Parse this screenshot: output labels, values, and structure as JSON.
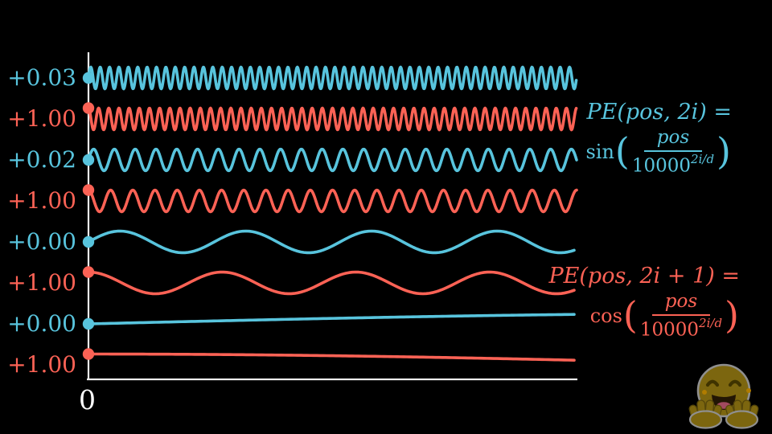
{
  "colors": {
    "blue": "#58C4DD",
    "red": "#FC6255",
    "axis": "#ECECEC",
    "origin_label": "#FFFFFF"
  },
  "axis": {
    "origin_label": "0"
  },
  "chart_data": {
    "type": "line",
    "title": "",
    "description": "Sinusoidal positional encoding components plotted against position pos, one row per encoding dimension; sine dimensions in blue, cosine dimensions in red. Dots mark the value at pos = 0 on the vertical axis.",
    "xlabel": "",
    "ylabel": "",
    "x_axis": {
      "origin_tick_label": "0",
      "ticks": [
        "0"
      ]
    },
    "grid": false,
    "legend_position": "none",
    "y_amplitude": 1,
    "series": [
      {
        "value_label": "+0.03",
        "function": "sin",
        "color_role": "blue",
        "cycles_across_width": 52,
        "start_value": 0
      },
      {
        "value_label": "+1.00",
        "function": "cos",
        "color_role": "red",
        "cycles_across_width": 48,
        "start_value": 1
      },
      {
        "value_label": "+0.02",
        "function": "sin",
        "color_role": "blue",
        "cycles_across_width": 23.5,
        "start_value": 0
      },
      {
        "value_label": "+1.00",
        "function": "cos",
        "color_role": "red",
        "cycles_across_width": 22,
        "start_value": 1
      },
      {
        "value_label": "+0.00",
        "function": "sin",
        "color_role": "blue",
        "cycles_across_width": 3.88,
        "start_value": 0
      },
      {
        "value_label": "+1.00",
        "function": "cos",
        "color_role": "red",
        "cycles_across_width": 3.65,
        "start_value": 1
      },
      {
        "value_label": "+0.00",
        "function": "sin",
        "color_role": "blue",
        "cycles_across_width": 0.17,
        "start_value": 0
      },
      {
        "value_label": "+1.00",
        "function": "cos",
        "color_role": "red",
        "cycles_across_width": 0.18,
        "start_value": 1
      }
    ]
  },
  "formulas": {
    "sin": {
      "line1": "PE(pos, 2i) =",
      "func": "sin",
      "open_paren": "(",
      "numerator": "pos",
      "base": "10000",
      "exponent": "2i/d",
      "close_paren": ")"
    },
    "cos": {
      "line1": "PE(pos, 2i + 1) =",
      "func": "cos",
      "open_paren": "(",
      "numerator": "pos",
      "base": "10000",
      "exponent": "2i/d",
      "close_paren": ")"
    }
  },
  "icons": {
    "hugging_face": "hugging-face-emoji"
  }
}
